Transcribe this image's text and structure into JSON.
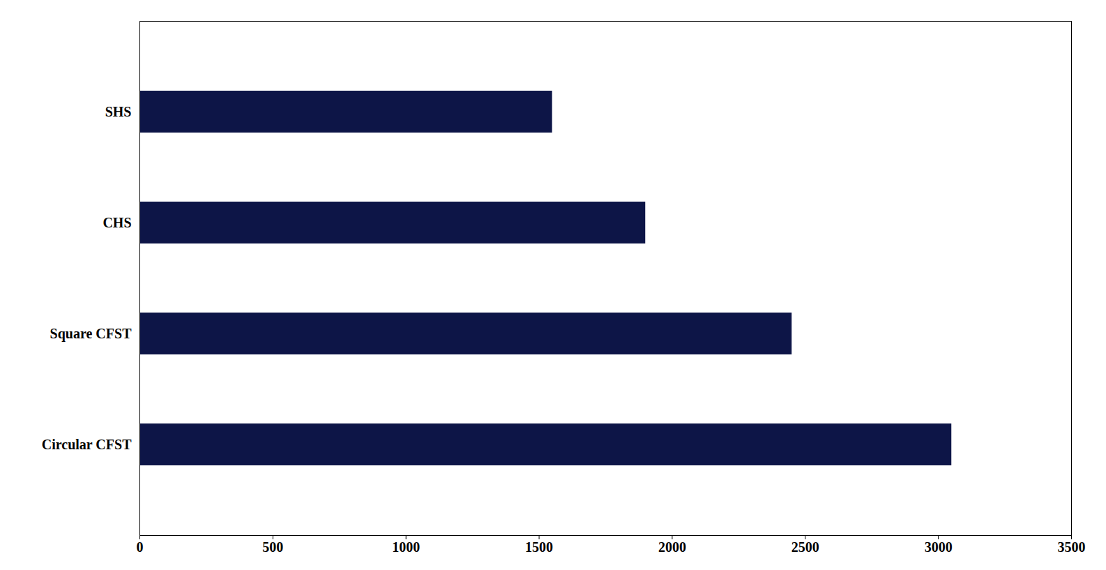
{
  "chart_data": {
    "type": "bar",
    "orientation": "horizontal",
    "categories": [
      "SHS",
      "CHS",
      "Square CFST",
      "Circular CFST"
    ],
    "values": [
      1550,
      1900,
      2450,
      3050
    ],
    "color": "#0d1547",
    "xlim": [
      0,
      3500
    ],
    "xticks": [
      0,
      500,
      1000,
      1500,
      2000,
      2500,
      3000,
      3500
    ],
    "grid": false
  }
}
